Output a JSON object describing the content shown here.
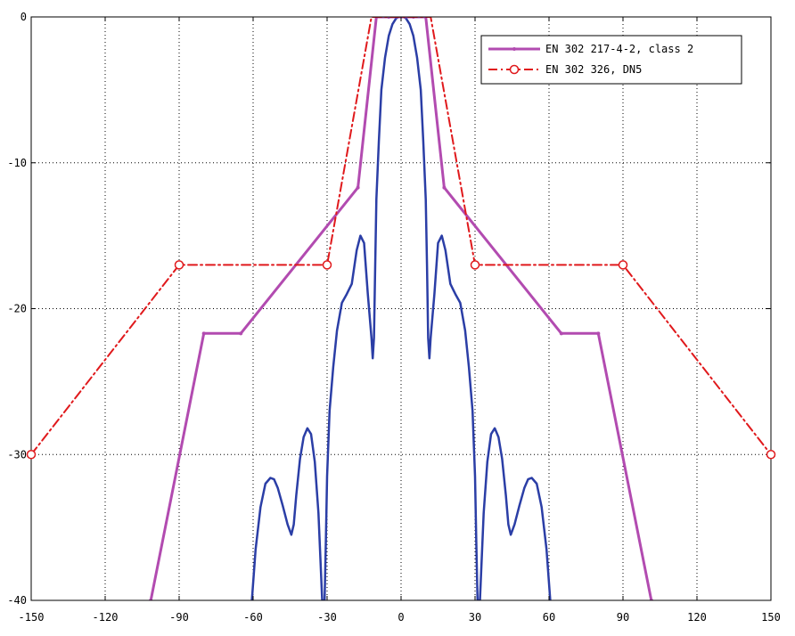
{
  "chart_data": {
    "type": "line",
    "title": "",
    "xlabel": "",
    "ylabel": "",
    "xlim": [
      -150,
      150
    ],
    "ylim": [
      -40,
      0
    ],
    "xticks": [
      -150,
      -120,
      -90,
      -60,
      -30,
      0,
      30,
      60,
      90,
      120,
      150
    ],
    "yticks": [
      0,
      -10,
      -20,
      -30,
      -40
    ],
    "grid": true,
    "legend_position": "top-right",
    "legend": [
      {
        "label": "EN 302 217-4-2, class 2",
        "series": "mask1"
      },
      {
        "label": "EN 302 326, DN5",
        "series": "mask2"
      }
    ],
    "series": [
      {
        "id": "pattern",
        "name": "",
        "color": "#2b3ea6",
        "style": "solid",
        "marker": "none",
        "x": [
          -60.5,
          -59,
          -57,
          -55,
          -53,
          -51.5,
          -50,
          -48,
          -46,
          -44.5,
          -43.5,
          -42.5,
          -41,
          -39.5,
          -38,
          -36.5,
          -35,
          -33.5,
          -32.5,
          -32,
          -31,
          -30.5,
          -30,
          -29,
          -27.5,
          -26,
          -24,
          -22,
          -20,
          -18,
          -16.5,
          -15,
          -13.5,
          -12,
          -11.5,
          -11,
          -10.5,
          -10,
          -9,
          -8,
          -6.5,
          -5,
          -3.5,
          -2,
          -1,
          0,
          1,
          2,
          3.5,
          5,
          6.5,
          8,
          9,
          10,
          10.5,
          11,
          11.5,
          12,
          13.5,
          15,
          16.5,
          18,
          20,
          22,
          24,
          26,
          27.5,
          29,
          30,
          30.5,
          31,
          32,
          32.5,
          33.5,
          35,
          36.5,
          38,
          39.5,
          41,
          42.5,
          43.5,
          44.5,
          46,
          48,
          50,
          51.5,
          53,
          55,
          57,
          59,
          60.5
        ],
        "y": [
          -40,
          -36.5,
          -33.6,
          -32,
          -31.6,
          -31.7,
          -32.3,
          -33.5,
          -34.8,
          -35.5,
          -34.8,
          -32.8,
          -30.3,
          -28.8,
          -28.2,
          -28.6,
          -30.5,
          -34,
          -38,
          -40,
          -40,
          -36,
          -31.5,
          -27,
          -24,
          -21.5,
          -19.6,
          -19,
          -18.3,
          -16,
          -15,
          -15.5,
          -19,
          -22,
          -23.4,
          -22,
          -17,
          -12.5,
          -8.5,
          -5,
          -2.8,
          -1.3,
          -0.5,
          -0.1,
          0,
          0,
          0,
          -0.1,
          -0.5,
          -1.3,
          -2.8,
          -5,
          -8.5,
          -12.5,
          -17,
          -22,
          -23.4,
          -22,
          -19,
          -15.5,
          -15,
          -16,
          -18.3,
          -19,
          -19.6,
          -21.5,
          -24,
          -27,
          -31.5,
          -36,
          -40,
          -40,
          -38,
          -34,
          -30.5,
          -28.6,
          -28.2,
          -28.8,
          -30.3,
          -32.8,
          -34.8,
          -35.5,
          -34.8,
          -33.5,
          -32.3,
          -31.7,
          -31.6,
          -32,
          -33.6,
          -36.5,
          -40
        ]
      },
      {
        "id": "mask1",
        "name": "EN 302 217-4-2, class 2",
        "color": "#b24bb0",
        "style": "solid",
        "marker": "dot",
        "x": [
          -101.5,
          -80,
          -65,
          -17.5,
          -10,
          -5,
          5,
          10,
          17.5,
          65,
          80,
          101.5
        ],
        "y": [
          -40,
          -21.7,
          -21.7,
          -11.7,
          0,
          0,
          0,
          0,
          -11.7,
          -21.7,
          -21.7,
          -40
        ]
      },
      {
        "id": "mask2",
        "name": "EN 302 326, DN5",
        "color": "#e0191c",
        "style": "dashdot",
        "marker": "circle",
        "markers_at": [
          -150,
          -90,
          -30,
          30,
          90,
          150
        ],
        "x": [
          -150,
          -90,
          -30,
          -12,
          -7,
          7,
          12,
          30,
          90,
          150
        ],
        "y": [
          -30,
          -17,
          -17,
          0,
          0,
          0,
          0,
          -17,
          -17,
          -30
        ]
      }
    ]
  }
}
